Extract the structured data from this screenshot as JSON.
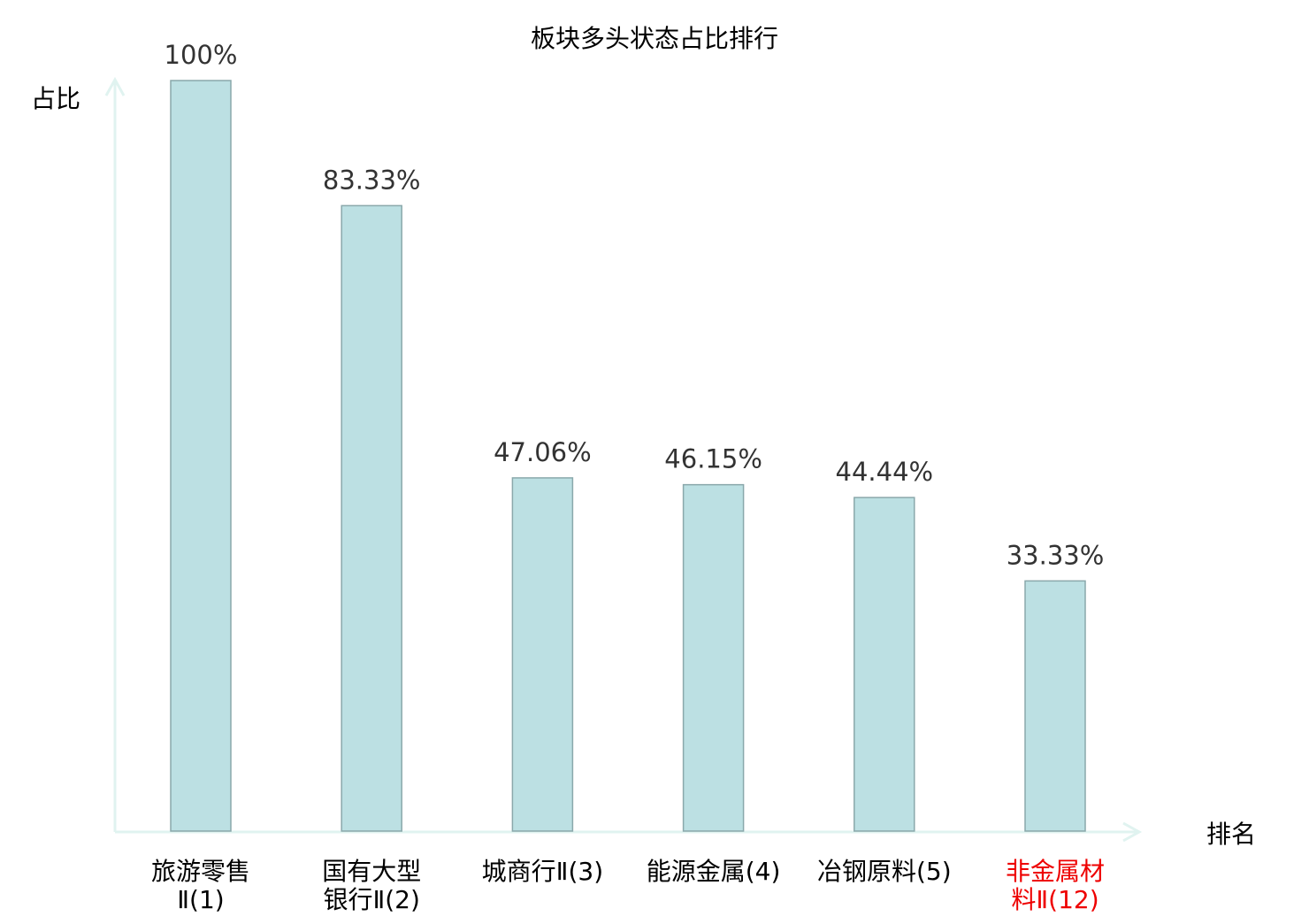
{
  "chart_data": {
    "type": "bar",
    "title": "板块多头状态占比排行",
    "xlabel": "排名",
    "ylabel": "占比",
    "ylim": [
      0,
      100
    ],
    "grid": false,
    "categories": [
      [
        "旅游零售",
        "Ⅱ(1)"
      ],
      [
        "国有大型",
        "银行Ⅱ(2)"
      ],
      [
        "城商行Ⅱ(3)"
      ],
      [
        "能源金属(4)"
      ],
      [
        "冶钢原料(5)"
      ],
      [
        "非金属材",
        "料Ⅱ(12)"
      ]
    ],
    "values": [
      100,
      83.33,
      47.06,
      46.15,
      44.44,
      33.33
    ],
    "value_labels": [
      "100%",
      "83.33%",
      "47.06%",
      "46.15%",
      "44.44%",
      "33.33%"
    ],
    "highlight_index": 5,
    "colors": {
      "bar_fill": "#bce0e3",
      "bar_stroke": "#8aa8ab",
      "axis": "#e0f3f0",
      "label": "#000000",
      "value_label": "#333333",
      "highlight": "#ee0000"
    }
  }
}
